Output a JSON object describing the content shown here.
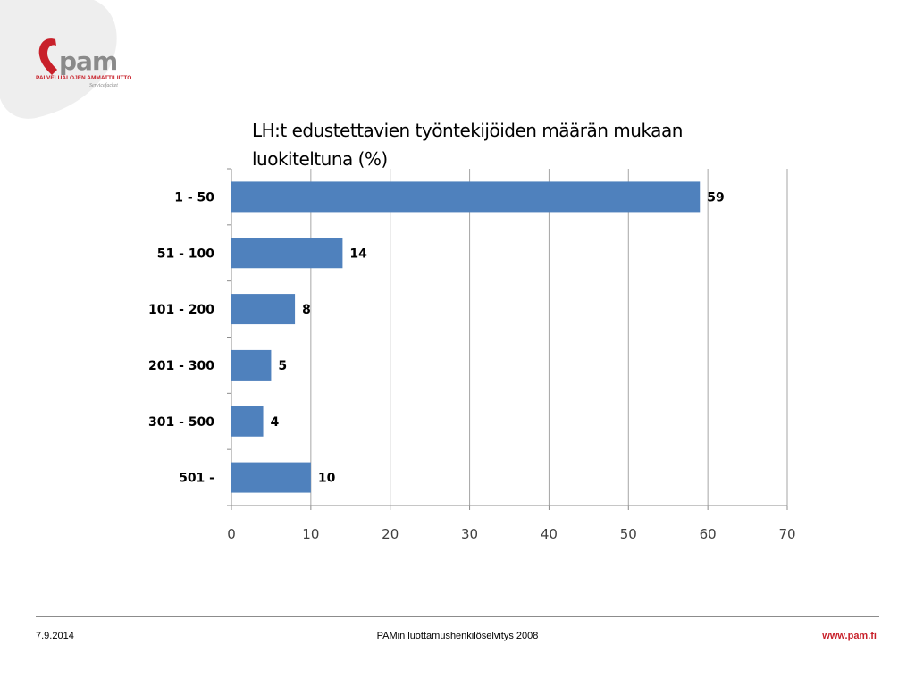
{
  "logo": {
    "name": "pam",
    "organization": "PALVELUALOJEN AMMATTILIITTO",
    "tagline": "Servicefacket",
    "brand_color": "#c8202a"
  },
  "chart_data": {
    "type": "bar",
    "orientation": "horizontal",
    "title": "LH:t edustettavien työntekijöiden määrän mukaan luokiteltuna (%)",
    "categories": [
      "1 - 50",
      "51 - 100",
      "101 - 200",
      "201 - 300",
      "301 - 500",
      "501 -"
    ],
    "values": [
      59,
      14,
      8,
      5,
      4,
      10
    ],
    "xlim": [
      0,
      70
    ],
    "x_ticks": [
      0,
      10,
      20,
      30,
      40,
      50,
      60,
      70
    ],
    "grid": true,
    "bar_color": "#4f81bd",
    "data_labels": true
  },
  "footer": {
    "date": "7.9.2014",
    "title": "PAMin luottamushenkilöselvitys 2008",
    "url": "www.pam.fi"
  }
}
